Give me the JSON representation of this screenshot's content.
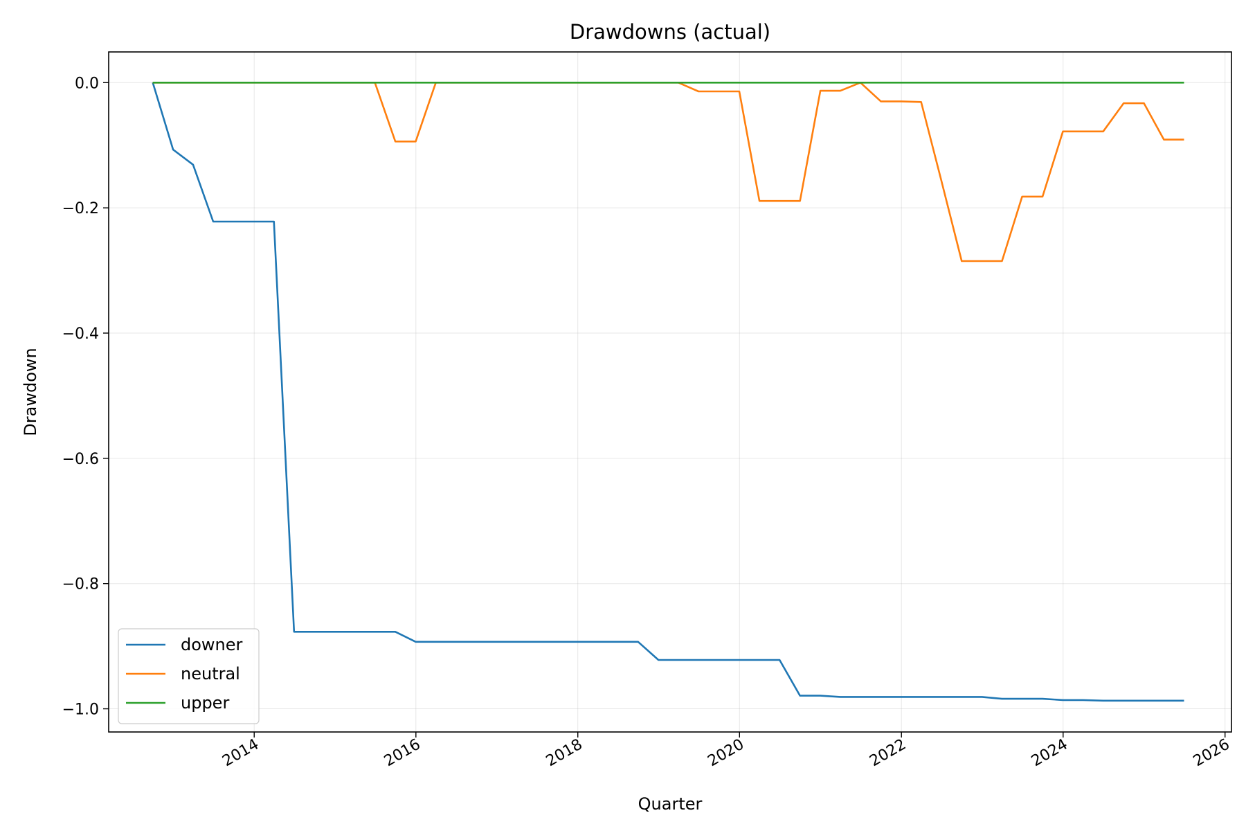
{
  "chart_data": {
    "type": "line",
    "title": "Drawdowns (actual)",
    "xlabel": "Quarter",
    "ylabel": "Drawdown",
    "x_type": "date",
    "xlim": [
      "2012-03-15",
      "2026-01-30"
    ],
    "ylim": [
      -1.037,
      0.049
    ],
    "x_ticks": [
      "2014",
      "2016",
      "2018",
      "2020",
      "2022",
      "2024",
      "2026"
    ],
    "y_ticks": [
      "0.0",
      "−0.2",
      "−0.4",
      "−0.6",
      "−0.8",
      "−1.0"
    ],
    "grid": true,
    "legend_position": "lower-left",
    "x": [
      "2012-09-30",
      "2012-12-31",
      "2013-03-31",
      "2013-06-30",
      "2013-09-30",
      "2013-12-31",
      "2014-03-31",
      "2014-06-30",
      "2014-09-30",
      "2014-12-31",
      "2015-03-31",
      "2015-06-30",
      "2015-09-30",
      "2015-12-31",
      "2016-03-31",
      "2016-06-30",
      "2016-09-30",
      "2016-12-31",
      "2017-03-31",
      "2017-06-30",
      "2017-09-30",
      "2017-12-31",
      "2018-03-31",
      "2018-06-30",
      "2018-09-30",
      "2018-12-31",
      "2019-03-31",
      "2019-06-30",
      "2019-09-30",
      "2019-12-31",
      "2020-03-31",
      "2020-06-30",
      "2020-09-30",
      "2020-12-31",
      "2021-03-31",
      "2021-06-30",
      "2021-09-30",
      "2021-12-31",
      "2022-03-31",
      "2022-06-30",
      "2022-09-30",
      "2022-12-31",
      "2023-03-31",
      "2023-06-30",
      "2023-09-30",
      "2023-12-31",
      "2024-03-31",
      "2024-06-30",
      "2024-09-30",
      "2024-12-31",
      "2025-03-31",
      "2025-06-30"
    ],
    "series": [
      {
        "name": "downer",
        "color": "#1f77b4",
        "values": [
          0.0,
          -0.107,
          -0.131,
          -0.222,
          -0.222,
          -0.222,
          -0.222,
          -0.877,
          -0.877,
          -0.877,
          -0.877,
          -0.877,
          -0.877,
          -0.893,
          -0.893,
          -0.893,
          -0.893,
          -0.893,
          -0.893,
          -0.893,
          -0.893,
          -0.893,
          -0.893,
          -0.893,
          -0.893,
          -0.922,
          -0.922,
          -0.922,
          -0.922,
          -0.922,
          -0.922,
          -0.922,
          -0.979,
          -0.979,
          -0.981,
          -0.981,
          -0.981,
          -0.981,
          -0.981,
          -0.981,
          -0.981,
          -0.981,
          -0.984,
          -0.984,
          -0.984,
          -0.986,
          -0.986,
          -0.987,
          -0.987,
          -0.987,
          -0.987,
          -0.987
        ]
      },
      {
        "name": "neutral",
        "color": "#ff7f0e",
        "values": [
          0.0,
          0.0,
          0.0,
          0.0,
          0.0,
          0.0,
          0.0,
          0.0,
          0.0,
          0.0,
          0.0,
          0.0,
          -0.094,
          -0.094,
          0.0,
          0.0,
          0.0,
          0.0,
          0.0,
          0.0,
          0.0,
          0.0,
          0.0,
          0.0,
          0.0,
          0.0,
          0.0,
          -0.014,
          -0.014,
          -0.014,
          -0.189,
          -0.189,
          -0.189,
          -0.013,
          -0.013,
          0.0,
          -0.03,
          -0.03,
          -0.031,
          -0.156,
          -0.285,
          -0.285,
          -0.285,
          -0.182,
          -0.182,
          -0.078,
          -0.078,
          -0.078,
          -0.033,
          -0.033,
          -0.091,
          -0.091
        ]
      },
      {
        "name": "upper",
        "color": "#2ca02c",
        "values": [
          0.0,
          0.0,
          0.0,
          0.0,
          0.0,
          0.0,
          0.0,
          0.0,
          0.0,
          0.0,
          0.0,
          0.0,
          0.0,
          0.0,
          0.0,
          0.0,
          0.0,
          0.0,
          0.0,
          0.0,
          0.0,
          0.0,
          0.0,
          0.0,
          0.0,
          0.0,
          0.0,
          0.0,
          0.0,
          0.0,
          0.0,
          0.0,
          0.0,
          0.0,
          0.0,
          0.0,
          0.0,
          0.0,
          0.0,
          0.0,
          0.0,
          0.0,
          0.0,
          0.0,
          0.0,
          0.0,
          0.0,
          0.0,
          0.0,
          0.0,
          0.0,
          0.0
        ]
      }
    ]
  }
}
